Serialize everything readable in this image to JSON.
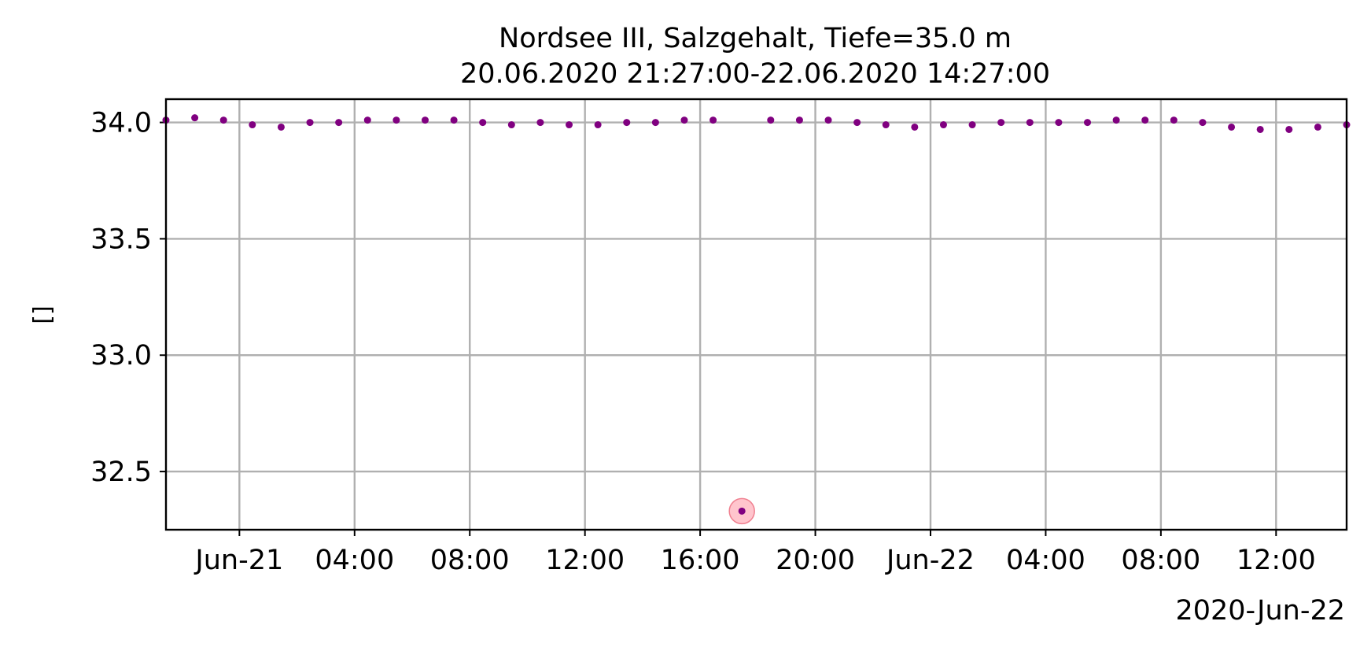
{
  "chart_data": {
    "type": "scatter",
    "title": "Nordsee III, Salzgehalt, Tiefe=35.0 m",
    "subtitle": "20.06.2020 21:27:00-22.06.2020 14:27:00",
    "xlabel": "",
    "ylabel": "[]",
    "x_offset_label": "2020-Jun-22",
    "xlim": [
      "2020-06-20T21:27:00",
      "2020-06-22T14:27:00"
    ],
    "ylim": [
      32.25,
      34.1
    ],
    "grid": true,
    "x_ticks": [
      {
        "t": "2020-06-21T00:00:00",
        "label": "Jun-21"
      },
      {
        "t": "2020-06-21T04:00:00",
        "label": "04:00"
      },
      {
        "t": "2020-06-21T08:00:00",
        "label": "08:00"
      },
      {
        "t": "2020-06-21T12:00:00",
        "label": "12:00"
      },
      {
        "t": "2020-06-21T16:00:00",
        "label": "16:00"
      },
      {
        "t": "2020-06-21T20:00:00",
        "label": "20:00"
      },
      {
        "t": "2020-06-22T00:00:00",
        "label": "Jun-22"
      },
      {
        "t": "2020-06-22T04:00:00",
        "label": "04:00"
      },
      {
        "t": "2020-06-22T08:00:00",
        "label": "08:00"
      },
      {
        "t": "2020-06-22T12:00:00",
        "label": "12:00"
      }
    ],
    "y_ticks": [
      {
        "v": 32.5,
        "label": "32.5"
      },
      {
        "v": 33.0,
        "label": "33.0"
      },
      {
        "v": 33.5,
        "label": "33.5"
      },
      {
        "v": 34.0,
        "label": "34.0"
      }
    ],
    "series": [
      {
        "color": "#800080",
        "points": [
          {
            "t": "2020-06-20T21:27:00",
            "y": 34.01
          },
          {
            "t": "2020-06-20T22:27:00",
            "y": 34.02
          },
          {
            "t": "2020-06-20T23:27:00",
            "y": 34.01
          },
          {
            "t": "2020-06-21T00:27:00",
            "y": 33.99
          },
          {
            "t": "2020-06-21T01:27:00",
            "y": 33.98
          },
          {
            "t": "2020-06-21T02:27:00",
            "y": 34.0
          },
          {
            "t": "2020-06-21T03:27:00",
            "y": 34.0
          },
          {
            "t": "2020-06-21T04:27:00",
            "y": 34.01
          },
          {
            "t": "2020-06-21T05:27:00",
            "y": 34.01
          },
          {
            "t": "2020-06-21T06:27:00",
            "y": 34.01
          },
          {
            "t": "2020-06-21T07:27:00",
            "y": 34.01
          },
          {
            "t": "2020-06-21T08:27:00",
            "y": 34.0
          },
          {
            "t": "2020-06-21T09:27:00",
            "y": 33.99
          },
          {
            "t": "2020-06-21T10:27:00",
            "y": 34.0
          },
          {
            "t": "2020-06-21T11:27:00",
            "y": 33.99
          },
          {
            "t": "2020-06-21T12:27:00",
            "y": 33.99
          },
          {
            "t": "2020-06-21T13:27:00",
            "y": 34.0
          },
          {
            "t": "2020-06-21T14:27:00",
            "y": 34.0
          },
          {
            "t": "2020-06-21T15:27:00",
            "y": 34.01
          },
          {
            "t": "2020-06-21T16:27:00",
            "y": 34.01
          },
          {
            "t": "2020-06-21T17:27:00",
            "y": 32.33,
            "flagged": true
          },
          {
            "t": "2020-06-21T18:27:00",
            "y": 34.01
          },
          {
            "t": "2020-06-21T19:27:00",
            "y": 34.01
          },
          {
            "t": "2020-06-21T20:27:00",
            "y": 34.01
          },
          {
            "t": "2020-06-21T21:27:00",
            "y": 34.0
          },
          {
            "t": "2020-06-21T22:27:00",
            "y": 33.99
          },
          {
            "t": "2020-06-21T23:27:00",
            "y": 33.98
          },
          {
            "t": "2020-06-22T00:27:00",
            "y": 33.99
          },
          {
            "t": "2020-06-22T01:27:00",
            "y": 33.99
          },
          {
            "t": "2020-06-22T02:27:00",
            "y": 34.0
          },
          {
            "t": "2020-06-22T03:27:00",
            "y": 34.0
          },
          {
            "t": "2020-06-22T04:27:00",
            "y": 34.0
          },
          {
            "t": "2020-06-22T05:27:00",
            "y": 34.0
          },
          {
            "t": "2020-06-22T06:27:00",
            "y": 34.01
          },
          {
            "t": "2020-06-22T07:27:00",
            "y": 34.01
          },
          {
            "t": "2020-06-22T08:27:00",
            "y": 34.01
          },
          {
            "t": "2020-06-22T09:27:00",
            "y": 34.0
          },
          {
            "t": "2020-06-22T10:27:00",
            "y": 33.98
          },
          {
            "t": "2020-06-22T11:27:00",
            "y": 33.97
          },
          {
            "t": "2020-06-22T12:27:00",
            "y": 33.97
          },
          {
            "t": "2020-06-22T13:27:00",
            "y": 33.98
          },
          {
            "t": "2020-06-22T14:27:00",
            "y": 33.99
          }
        ]
      }
    ],
    "flag_color": "#ffb6c1"
  }
}
